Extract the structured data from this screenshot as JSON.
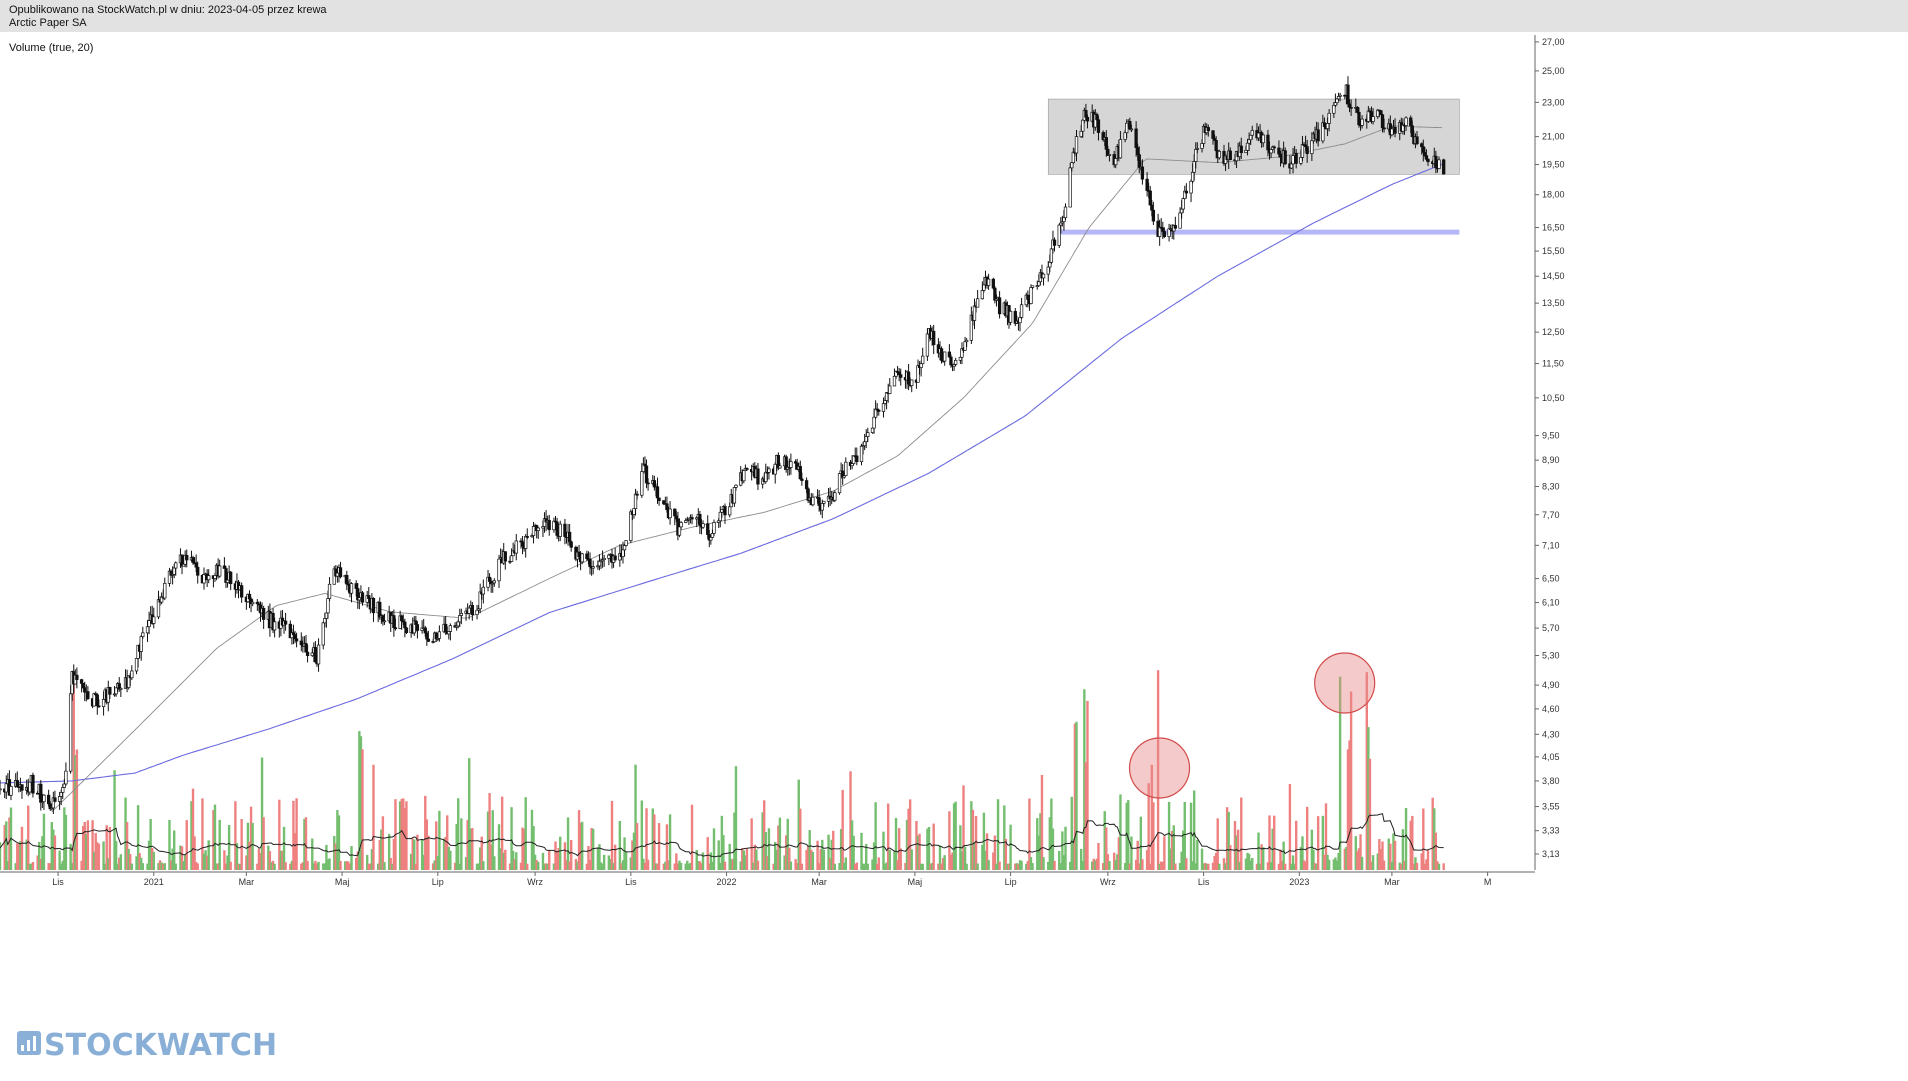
{
  "header": {
    "published": "Opublikowano na StockWatch.pl w dniu: 2023-04-05 przez krewa",
    "instrument": "Arctic Paper SA"
  },
  "volume_label": "Volume (true, 20)",
  "watermark": "STOCKWATCH",
  "colors": {
    "candle": "#111111",
    "sma_slow": "#6a6ae0",
    "sma_fast": "#8c8c8c",
    "vol_up": "#74bf6f",
    "vol_down": "#ee8080",
    "vol_ma": "#222222",
    "zone_fill": "#d6d6d6",
    "support_line": "#b6b6f6",
    "highlight": "#e88a8a"
  },
  "chart_data": {
    "type": "candlestick",
    "y_scale": "log",
    "ylim": [
      3.0,
      27.5
    ],
    "y_ticks": [
      "27,00",
      "25,00",
      "23,00",
      "21,00",
      "19,50",
      "18,00",
      "16,50",
      "15,50",
      "14,50",
      "13,50",
      "12,50",
      "11,50",
      "10,50",
      "9,50",
      "8,90",
      "8,30",
      "7,70",
      "7,10",
      "6,50",
      "6,10",
      "5,70",
      "5,30",
      "4,90",
      "4,60",
      "4,30",
      "4,05",
      "3,80",
      "3,55",
      "3,33",
      "3,13"
    ],
    "x_ticks": [
      {
        "label": "Lis",
        "date": "2020-11"
      },
      {
        "label": "2021",
        "date": "2021-01"
      },
      {
        "label": "Mar",
        "date": "2021-03"
      },
      {
        "label": "Maj",
        "date": "2021-05"
      },
      {
        "label": "Lip",
        "date": "2021-07"
      },
      {
        "label": "Wrz",
        "date": "2021-09"
      },
      {
        "label": "Lis",
        "date": "2021-11"
      },
      {
        "label": "2022",
        "date": "2022-01"
      },
      {
        "label": "Mar",
        "date": "2022-03"
      },
      {
        "label": "Maj",
        "date": "2022-05"
      },
      {
        "label": "Lip",
        "date": "2022-07"
      },
      {
        "label": "Wrz",
        "date": "2022-09"
      },
      {
        "label": "Lis",
        "date": "2022-11"
      },
      {
        "label": "2023",
        "date": "2023-01"
      },
      {
        "label": "Mar",
        "date": "2023-03"
      },
      {
        "label": "M",
        "date": "2023-05"
      }
    ],
    "price_path": [
      [
        "2020-09-25",
        3.72
      ],
      [
        "2020-10-15",
        3.78
      ],
      [
        "2020-10-28",
        3.55
      ],
      [
        "2020-11-05",
        3.75
      ],
      [
        "2020-11-10",
        5.0
      ],
      [
        "2020-11-20",
        4.7
      ],
      [
        "2020-12-01",
        4.75
      ],
      [
        "2020-12-15",
        4.95
      ],
      [
        "2020-12-28",
        5.7
      ],
      [
        "2021-01-12",
        6.6
      ],
      [
        "2021-01-22",
        6.9
      ],
      [
        "2021-02-01",
        6.5
      ],
      [
        "2021-02-12",
        6.7
      ],
      [
        "2021-02-25",
        6.3
      ],
      [
        "2021-03-10",
        5.9
      ],
      [
        "2021-03-25",
        5.7
      ],
      [
        "2021-04-08",
        5.4
      ],
      [
        "2021-04-15",
        5.3
      ],
      [
        "2021-04-26",
        6.7
      ],
      [
        "2021-05-10",
        6.2
      ],
      [
        "2021-05-20",
        6.05
      ],
      [
        "2021-06-01",
        5.85
      ],
      [
        "2021-06-15",
        5.7
      ],
      [
        "2021-06-28",
        5.6
      ],
      [
        "2021-07-12",
        5.8
      ],
      [
        "2021-07-26",
        6.05
      ],
      [
        "2021-08-10",
        6.8
      ],
      [
        "2021-08-25",
        7.2
      ],
      [
        "2021-09-05",
        7.6
      ],
      [
        "2021-09-18",
        7.4
      ],
      [
        "2021-09-30",
        6.8
      ],
      [
        "2021-10-12",
        6.8
      ],
      [
        "2021-10-26",
        6.9
      ],
      [
        "2021-11-02",
        7.8
      ],
      [
        "2021-11-08",
        8.7
      ],
      [
        "2021-11-20",
        8.1
      ],
      [
        "2021-12-01",
        7.4
      ],
      [
        "2021-12-12",
        7.6
      ],
      [
        "2021-12-22",
        7.3
      ],
      [
        "2022-01-04",
        8.0
      ],
      [
        "2022-01-14",
        8.8
      ],
      [
        "2022-01-24",
        8.4
      ],
      [
        "2022-02-03",
        8.9
      ],
      [
        "2022-02-15",
        8.8
      ],
      [
        "2022-02-24",
        8.0
      ],
      [
        "2022-03-05",
        7.85
      ],
      [
        "2022-03-16",
        8.6
      ],
      [
        "2022-03-28",
        9.2
      ],
      [
        "2022-04-08",
        10.3
      ],
      [
        "2022-04-20",
        11.1
      ],
      [
        "2022-05-02",
        11.0
      ],
      [
        "2022-05-10",
        12.6
      ],
      [
        "2022-05-20",
        11.6
      ],
      [
        "2022-05-28",
        11.4
      ],
      [
        "2022-06-05",
        12.8
      ],
      [
        "2022-06-14",
        14.4
      ],
      [
        "2022-06-24",
        13.4
      ],
      [
        "2022-07-05",
        12.9
      ],
      [
        "2022-07-14",
        13.8
      ],
      [
        "2022-07-26",
        15.3
      ],
      [
        "2022-08-03",
        16.6
      ],
      [
        "2022-08-10",
        20.0
      ],
      [
        "2022-08-18",
        22.5
      ],
      [
        "2022-08-26",
        21.6
      ],
      [
        "2022-09-05",
        19.6
      ],
      [
        "2022-09-15",
        21.8
      ],
      [
        "2022-09-24",
        18.8
      ],
      [
        "2022-10-03",
        16.1
      ],
      [
        "2022-10-14",
        16.8
      ],
      [
        "2022-10-23",
        18.8
      ],
      [
        "2022-11-02",
        21.6
      ],
      [
        "2022-11-12",
        19.6
      ],
      [
        "2022-11-24",
        20.2
      ],
      [
        "2022-12-05",
        21.2
      ],
      [
        "2022-12-15",
        20.4
      ],
      [
        "2022-12-26",
        19.6
      ],
      [
        "2023-01-06",
        20.4
      ],
      [
        "2023-01-18",
        21.6
      ],
      [
        "2023-01-30",
        23.8
      ],
      [
        "2023-02-08",
        21.8
      ],
      [
        "2023-02-18",
        22.5
      ],
      [
        "2023-02-28",
        21.2
      ],
      [
        "2023-03-10",
        21.6
      ],
      [
        "2023-03-20",
        20.2
      ],
      [
        "2023-04-03",
        19.2
      ]
    ],
    "sma_slow_path": [
      [
        "2020-09-25",
        3.78
      ],
      [
        "2020-11-10",
        3.8
      ],
      [
        "2020-12-20",
        3.88
      ],
      [
        "2021-01-20",
        4.07
      ],
      [
        "2021-03-15",
        4.36
      ],
      [
        "2021-05-10",
        4.72
      ],
      [
        "2021-07-10",
        5.25
      ],
      [
        "2021-09-10",
        5.94
      ],
      [
        "2021-11-10",
        6.43
      ],
      [
        "2022-01-10",
        6.95
      ],
      [
        "2022-03-10",
        7.62
      ],
      [
        "2022-05-10",
        8.6
      ],
      [
        "2022-07-10",
        10.0
      ],
      [
        "2022-09-10",
        12.3
      ],
      [
        "2022-11-10",
        14.5
      ],
      [
        "2023-01-10",
        16.7
      ],
      [
        "2023-03-01",
        18.5
      ],
      [
        "2023-04-03",
        19.55
      ]
    ],
    "sma_fast_path": [
      [
        "2020-10-28",
        3.5
      ],
      [
        "2020-12-20",
        4.35
      ],
      [
        "2021-02-10",
        5.4
      ],
      [
        "2021-03-20",
        6.05
      ],
      [
        "2021-04-20",
        6.25
      ],
      [
        "2021-06-01",
        5.95
      ],
      [
        "2021-07-20",
        5.85
      ],
      [
        "2021-09-10",
        6.5
      ],
      [
        "2021-10-25",
        7.1
      ],
      [
        "2021-12-10",
        7.45
      ],
      [
        "2022-01-25",
        7.75
      ],
      [
        "2022-03-10",
        8.2
      ],
      [
        "2022-04-20",
        9.0
      ],
      [
        "2022-06-01",
        10.5
      ],
      [
        "2022-07-15",
        12.8
      ],
      [
        "2022-08-20",
        16.5
      ],
      [
        "2022-09-25",
        19.8
      ],
      [
        "2022-11-10",
        19.6
      ],
      [
        "2022-12-20",
        19.9
      ],
      [
        "2023-01-30",
        20.6
      ],
      [
        "2023-03-01",
        21.6
      ],
      [
        "2023-04-03",
        21.5
      ]
    ],
    "consolidation_zone": {
      "from": "2022-07-25",
      "to": "2023-04-13",
      "low": 19.0,
      "high": 23.2
    },
    "support_level": {
      "value": 16.3,
      "from": "2022-08-01",
      "to": "2023-04-13"
    },
    "volume": {
      "spike_dates": [
        "2020-11-12",
        "2021-05-13",
        "2022-08-12",
        "2022-08-18",
        "2022-10-02",
        "2023-01-28",
        "2023-02-02",
        "2023-02-14"
      ],
      "highlighted_bars": [
        "2022-10-02",
        "2023-01-28"
      ]
    }
  }
}
